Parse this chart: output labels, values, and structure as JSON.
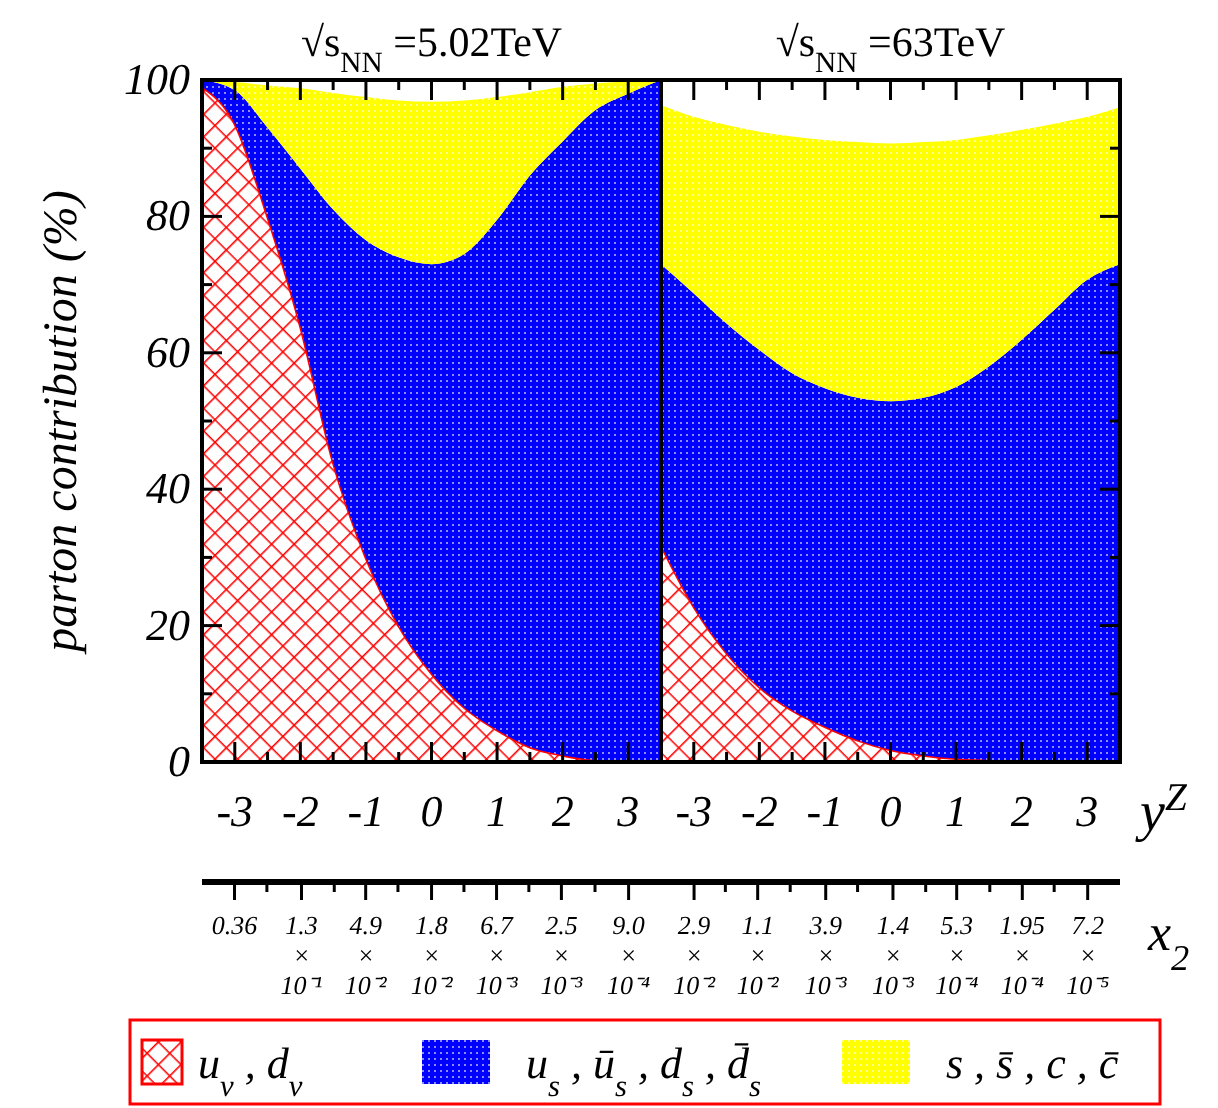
{
  "chart_data": [
    {
      "type": "area",
      "title": "√s$_{NN}$ =5.02TeV",
      "ylabel": "parton contribution  (%)",
      "stacked": true,
      "legend": "bottom",
      "x": [
        -3.5,
        -3,
        -2.5,
        -2,
        -1.5,
        -1,
        -0.5,
        0,
        0.5,
        1,
        1.5,
        2,
        2.5,
        3,
        3.5
      ],
      "xlim": [
        -3.5,
        3.5
      ],
      "ylim": [
        0,
        100
      ],
      "xticks": [
        {
          "value": -3,
          "label": "-3"
        },
        {
          "value": -2.5,
          "label": null
        },
        {
          "value": -2,
          "label": "-2"
        },
        {
          "value": -1.5,
          "label": null
        },
        {
          "value": -1,
          "label": "-1"
        },
        {
          "value": -0.5,
          "label": null
        },
        0,
        {
          "value": 0.5,
          "label": null
        },
        1,
        {
          "value": 1.5,
          "label": null
        },
        2,
        {
          "value": 2.5,
          "label": null
        },
        3
      ],
      "yticks": [
        0,
        {
          "value": 10,
          "label": null
        },
        20,
        {
          "value": 30,
          "label": null
        },
        40,
        {
          "value": 50,
          "label": null
        },
        60,
        {
          "value": 70,
          "label": null
        },
        80,
        {
          "value": 90,
          "label": null
        },
        100
      ],
      "log": "x2",
      "x2lim": [
        0.59,
        0.00055
      ],
      "x2ticks": [
        {
          "value": 0.36,
          "label": "0.36"
        },
        {
          "value": 0.22,
          "label": null
        },
        {
          "value": 0.13,
          "label": "1.3 × 10⁻¹"
        },
        {
          "value": 0.079,
          "label": null
        },
        {
          "value": 0.049,
          "label": "4.9 × 10⁻²"
        },
        {
          "value": 0.03,
          "label": null
        },
        {
          "value": 0.018,
          "label": "1.8 × 10⁻²"
        },
        {
          "value": 0.011,
          "label": null
        },
        {
          "value": 0.0067,
          "label": "6.7 × 10⁻³"
        },
        {
          "value": 0.0041,
          "label": null
        },
        {
          "value": 0.0025,
          "label": "2.5 × 10⁻³"
        },
        {
          "value": 0.0015,
          "label": null
        },
        {
          "value": 0.0009,
          "label": "9.0 × 10⁻⁴"
        }
      ],
      "series": [
        {
          "name": "u$_{v}$ , d$_{v}$",
          "color": "#ff0000",
          "values": [
            99,
            93.6,
            80,
            64,
            44,
            30,
            20,
            13,
            8,
            4.7,
            2.2,
            1,
            0.3,
            0.1,
            0
          ]
        },
        {
          "name": "u$_{s}$ , ū$_{s}$ , d$_{s}$ , d̄$_{s}$",
          "color": "#0000ff",
          "values": [
            1,
            4.9,
            13,
            23,
            37,
            46.5,
            54,
            60,
            66.5,
            74.8,
            83.8,
            90,
            95.3,
            97.9,
            100
          ]
        },
        {
          "name": "s , s̄ , c , c̄",
          "color": "#ffff00",
          "values": [
            0,
            1.2,
            6.2,
            11.8,
            17.1,
            21,
            23,
            23.8,
            22.5,
            18,
            12.2,
            8,
            3.9,
            1.8,
            0
          ]
        }
      ]
    },
    {
      "type": "area",
      "title": "√s$_{NN}$ =63TeV",
      "xlabel": "y$^{Z}$",
      "x2label": "x$_{2}$",
      "stacked": true,
      "tick_labels": "x",
      "x": [
        -3.5,
        -3,
        -2.5,
        -2,
        -1.5,
        -1,
        -0.5,
        0,
        0.5,
        1,
        1.5,
        2,
        2.5,
        3,
        3.5
      ],
      "xlim": [
        -3.5,
        3.5
      ],
      "ylim": [
        0,
        100
      ],
      "xticks": [
        {
          "value": -3,
          "label": "-3"
        },
        {
          "value": -2.5,
          "label": null
        },
        {
          "value": -2,
          "label": "-2"
        },
        {
          "value": -1.5,
          "label": null
        },
        {
          "value": -1,
          "label": "-1"
        },
        {
          "value": -0.5,
          "label": null
        },
        0,
        {
          "value": 0.5,
          "label": null
        },
        1,
        {
          "value": 1.5,
          "label": null
        },
        2,
        {
          "value": 2.5,
          "label": null
        },
        3
      ],
      "yticks": [
        0,
        {
          "value": 10,
          "label": null
        },
        20,
        {
          "value": 30,
          "label": null
        },
        40,
        {
          "value": 50,
          "label": null
        },
        60,
        {
          "value": 70,
          "label": null
        },
        80,
        {
          "value": 90,
          "label": null
        },
        100
      ],
      "log": "x2",
      "x2lim": [
        0.048,
        4.4e-05
      ],
      "x2ticks": [
        {
          "value": 0.029,
          "label": "2.9 × 10⁻²"
        },
        {
          "value": 0.018,
          "label": null
        },
        {
          "value": 0.011,
          "label": "1.1 × 10⁻²"
        },
        {
          "value": 0.0067,
          "label": null
        },
        {
          "value": 0.0039,
          "label": "3.9 × 10⁻³"
        },
        {
          "value": 0.0024,
          "label": null
        },
        {
          "value": 0.0014,
          "label": "1.4 × 10⁻³"
        },
        {
          "value": 0.00085,
          "label": null
        },
        {
          "value": 0.00053,
          "label": "5.3 × 10⁻⁴"
        },
        {
          "value": 0.00032,
          "label": null
        },
        {
          "value": 0.000195,
          "label": "1.95 × 10⁻⁴"
        },
        {
          "value": 0.00012,
          "label": null
        },
        {
          "value": 7.2e-05,
          "label": "7.2 × 10⁻⁵"
        }
      ],
      "series": [
        {
          "color": "#ff0000",
          "values": [
            31.8,
            22.8,
            16,
            11,
            7.6,
            5.2,
            3.2,
            1.8,
            1,
            0.5,
            0.3,
            0,
            0,
            0,
            0
          ]
        },
        {
          "color": "#0000ff",
          "values": [
            41.2,
            45.9,
            48.3,
            49.4,
            49.4,
            49.6,
            50.2,
            51.1,
            52.4,
            54.5,
            57.7,
            61.9,
            66.3,
            70.7,
            73
          ]
        },
        {
          "color": "#ffff00",
          "values": [
            23.3,
            25.9,
            29.1,
            32,
            34.7,
            36.4,
            37.5,
            37.8,
            37.5,
            36.2,
            33.9,
            30.8,
            27.3,
            23.9,
            23
          ]
        }
      ]
    }
  ]
}
